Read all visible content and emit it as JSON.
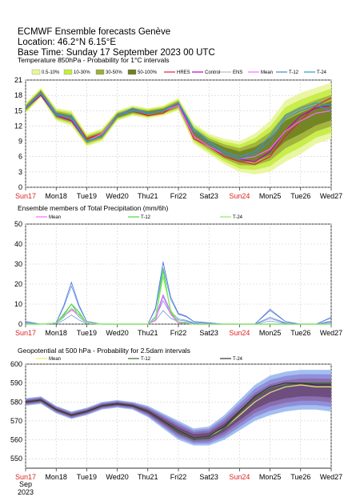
{
  "header": {
    "line1": "ECMWF Ensemble forecasts Genève",
    "line2": "Location:  46.2°N 6.15°E",
    "line3": "Base Time: Sunday 17 September 2023 00 UTC"
  },
  "days": [
    "Sun17",
    "Mon18",
    "Tue19",
    "Wed20",
    "Thu21",
    "Fri22",
    "Sat23",
    "Sun24",
    "Mon25",
    "Tue26",
    "Wed27"
  ],
  "weekend_days": [
    "Sun17",
    "Sun24"
  ],
  "month_label": "Sep",
  "year_label": "2023",
  "colors": {
    "weekend": "#dd2222",
    "hres": "#e0203a",
    "control": "#c000c0",
    "ens": "#bbbbbb",
    "mean": "#ff66ff",
    "t12": "#4a86c8",
    "t24": "#2a9ad0",
    "p05_10": "#e8f59a",
    "p10_30": "#c4ec44",
    "p30_50": "#9fae3c",
    "p50_100": "#6f7f24"
  },
  "chart_data": [
    {
      "type": "area",
      "title": "Temperature 850hPa - Probability for 1°C intervals",
      "legend": {
        "bands": [
          "0.5-10%",
          "10-30%",
          "30-50%",
          "50-100%"
        ],
        "lines": [
          "HRES",
          "Control",
          "ENS",
          "Mean",
          "T-12",
          "T-24"
        ]
      },
      "ylim": [
        0,
        21
      ],
      "yticks": [
        "0",
        "3",
        "6",
        "9",
        "12",
        "15",
        "18",
        "21"
      ],
      "x": [
        0,
        0.5,
        1,
        1.5,
        2,
        2.5,
        3,
        3.5,
        4,
        4.5,
        5,
        5.5,
        6,
        6.5,
        7,
        7.5,
        8,
        8.5,
        9,
        9.5,
        10
      ],
      "series": [
        {
          "name": "HRES",
          "values": [
            15.5,
            18.5,
            14,
            14,
            9.5,
            10.5,
            14,
            15,
            14,
            14.5,
            16.5,
            9.5,
            8,
            6,
            5,
            4.5,
            6,
            10,
            13,
            16,
            17.5
          ]
        },
        {
          "name": "Control",
          "values": [
            15.5,
            18,
            14,
            13,
            9,
            10,
            14,
            15,
            14.5,
            15,
            16.5,
            10,
            8,
            6.5,
            5.5,
            5,
            7,
            11,
            14,
            15.5,
            16
          ]
        },
        {
          "name": "Mean",
          "values": [
            15.5,
            18.5,
            14.5,
            13.5,
            9,
            10.5,
            14,
            15,
            14.5,
            15,
            16,
            10,
            8,
            6.5,
            5.5,
            6,
            7.5,
            11,
            13,
            14.5,
            15
          ]
        },
        {
          "name": "T-12",
          "values": [
            15.5,
            18.5,
            14.5,
            13.5,
            9,
            10,
            14,
            15.5,
            14.5,
            15,
            16.5,
            11,
            8.5,
            6.5,
            5.5,
            6.5,
            9,
            13.5,
            15,
            16,
            15
          ]
        },
        {
          "name": "T-24",
          "values": [
            15.5,
            18.5,
            14,
            14,
            9,
            10,
            14,
            15,
            14.5,
            15,
            16.5,
            11.5,
            9,
            7,
            6,
            7,
            10,
            14,
            15.5,
            16.5,
            16
          ]
        }
      ],
      "band_low": [
        14.5,
        17.5,
        13,
        12,
        8,
        9,
        13,
        14,
        13.5,
        14,
        15,
        8.5,
        6.5,
        4.5,
        3,
        2.5,
        3,
        5,
        6.5,
        8.5,
        9.5
      ],
      "band_high": [
        16.5,
        19.5,
        15.5,
        15,
        10.5,
        11.5,
        15,
        16,
        15.5,
        16,
        17.5,
        12.5,
        10.5,
        9.5,
        9,
        10.5,
        13,
        17,
        18.5,
        19.5,
        20.5
      ]
    },
    {
      "type": "line",
      "title": "Ensemble members of Total Precipitation (mm/6h)",
      "legend": {
        "lines": [
          "Mean",
          "T-12",
          "T-24"
        ]
      },
      "ylim": [
        0,
        50
      ],
      "yticks": [
        "0",
        "10",
        "20",
        "30",
        "40",
        "50"
      ],
      "x": [
        0,
        0.5,
        1,
        1.25,
        1.5,
        1.75,
        2,
        2.5,
        3,
        3.5,
        4,
        4.25,
        4.5,
        4.75,
        5,
        5.25,
        5.5,
        6,
        6.5,
        7,
        7.5,
        8,
        8.5,
        9,
        9.5,
        10
      ],
      "series": [
        {
          "name": "Mean",
          "values": [
            0,
            0,
            0.5,
            4,
            7,
            5,
            0.5,
            0,
            0,
            0,
            0,
            2,
            14,
            5,
            0.5,
            0.5,
            0,
            0,
            0,
            0,
            0,
            0,
            0,
            0,
            0,
            0
          ]
        },
        {
          "name": "T-12",
          "values": [
            0,
            0,
            0.5,
            5,
            10,
            6,
            0.5,
            0,
            0,
            0,
            0,
            3,
            27,
            6,
            1,
            0.5,
            0,
            0,
            0,
            0,
            0,
            0,
            0,
            0,
            0,
            0
          ]
        },
        {
          "name": "T-24",
          "values": [
            0,
            0,
            0.5,
            4,
            8,
            5,
            0.5,
            0,
            0,
            0,
            0,
            3,
            24,
            7,
            1,
            0.5,
            0,
            0,
            0,
            0,
            0,
            0,
            0,
            0,
            0,
            0
          ]
        }
      ],
      "member_max": [
        2,
        0,
        1,
        14,
        31,
        14,
        2,
        0,
        0,
        0,
        0,
        12,
        46,
        20,
        8,
        6,
        2,
        1,
        0,
        0,
        0,
        11,
        2,
        0,
        0,
        5
      ]
    },
    {
      "type": "area",
      "title": "Geopotential at 500 hPa - Probability for 2.5dam intervals",
      "legend": {
        "lines": [
          "Mean",
          "T-12",
          "T-24"
        ]
      },
      "ylim": [
        545,
        600
      ],
      "yticks": [
        "550",
        "560",
        "570",
        "580",
        "590",
        "600"
      ],
      "x": [
        0,
        0.5,
        1,
        1.5,
        2,
        2.5,
        3,
        3.5,
        4,
        4.5,
        5,
        5.5,
        6,
        6.5,
        7,
        7.5,
        8,
        8.5,
        9,
        9.5,
        10
      ],
      "series": [
        {
          "name": "Mean",
          "values": [
            580,
            581,
            576,
            573,
            575,
            578,
            579,
            578,
            575,
            570,
            565,
            561,
            562,
            566,
            573,
            580,
            585,
            588,
            589,
            588,
            588
          ]
        },
        {
          "name": "T-12",
          "values": [
            580,
            581,
            576,
            573,
            575,
            578,
            579,
            578,
            575,
            570,
            564,
            560,
            561,
            566,
            574,
            582,
            587,
            589,
            590,
            590,
            590
          ]
        },
        {
          "name": "T-24",
          "values": [
            580,
            581,
            576,
            573,
            575,
            578,
            579,
            578,
            575,
            570,
            565,
            561,
            562,
            567,
            575,
            583,
            588,
            590,
            590,
            589,
            589
          ]
        }
      ],
      "band_low": [
        578,
        579,
        574,
        571,
        573,
        576,
        577,
        576,
        572,
        566,
        560,
        557,
        557,
        560,
        565,
        570,
        573,
        575,
        576,
        576,
        575
      ],
      "band_high": [
        582,
        583,
        578,
        575,
        577,
        580,
        581,
        580,
        578,
        574,
        570,
        566,
        567,
        573,
        581,
        589,
        594,
        596,
        597,
        597,
        597
      ]
    }
  ]
}
